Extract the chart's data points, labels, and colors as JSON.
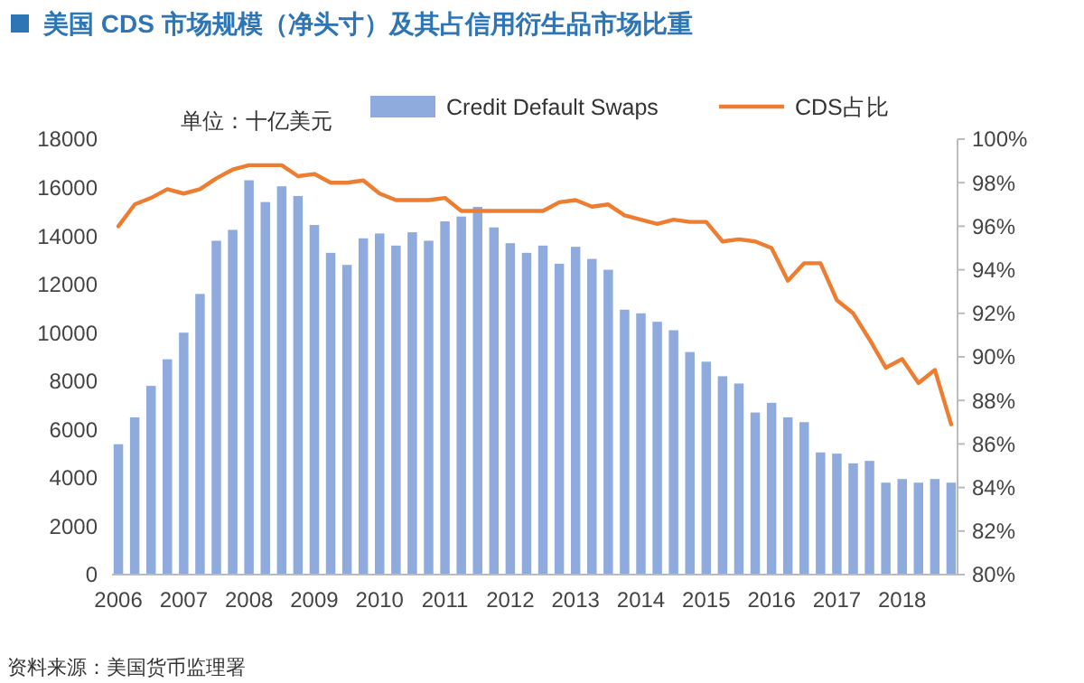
{
  "chart_data": {
    "type": "bar",
    "title": "美国 CDS 市场规模（净头寸）及其占信用衍生品市场比重",
    "annotations": [
      "单位：十亿美元",
      "资料来源：美国货币监理署"
    ],
    "categories": [
      "2006",
      null,
      null,
      null,
      "2007",
      null,
      null,
      null,
      "2008",
      null,
      null,
      null,
      "2009",
      null,
      null,
      null,
      "2010",
      null,
      null,
      null,
      "2011",
      null,
      null,
      null,
      "2012",
      null,
      null,
      null,
      "2013",
      null,
      null,
      null,
      "2014",
      null,
      null,
      null,
      "2015",
      null,
      null,
      null,
      "2016",
      null,
      null,
      null,
      "2017",
      null,
      null,
      null,
      "2018",
      null,
      null,
      null
    ],
    "series": [
      {
        "name": "Credit Default Swaps",
        "color": "#8faadc",
        "values": [
          5390,
          6500,
          7800,
          8900,
          10000,
          11600,
          13800,
          14250,
          16300,
          15400,
          16050,
          15650,
          14450,
          13300,
          12800,
          13900,
          14100,
          13600,
          14150,
          13800,
          14600,
          14800,
          15200,
          14350,
          13700,
          13300,
          13600,
          12850,
          13550,
          13050,
          12600,
          10950,
          10800,
          10450,
          10100,
          9200,
          8800,
          8200,
          7900,
          6700,
          7100,
          6500,
          6300,
          5050,
          5000,
          4600,
          4700,
          3800,
          3950,
          3800,
          3950,
          3800
        ]
      },
      {
        "name": "CDS占比",
        "type": "line",
        "axis": "y2",
        "color": "#ed7d31",
        "values": [
          96.0,
          97.0,
          97.3,
          97.7,
          97.5,
          97.7,
          98.2,
          98.6,
          98.8,
          98.8,
          98.8,
          98.3,
          98.4,
          98.0,
          98.0,
          98.1,
          97.5,
          97.2,
          97.2,
          97.2,
          97.3,
          96.7,
          96.7,
          96.7,
          96.7,
          96.7,
          96.7,
          97.1,
          97.2,
          96.9,
          97.0,
          96.5,
          96.3,
          96.1,
          96.3,
          96.2,
          96.2,
          95.3,
          95.4,
          95.3,
          95.0,
          93.5,
          94.3,
          94.3,
          92.6,
          92.0,
          90.8,
          89.5,
          89.9,
          88.8,
          89.4,
          86.9
        ]
      }
    ],
    "ylim": [
      0,
      18000
    ],
    "yticks": [
      0,
      2000,
      4000,
      6000,
      8000,
      10000,
      12000,
      14000,
      16000,
      18000
    ],
    "y2lim": [
      80,
      100
    ],
    "y2ticks": [
      {
        "value": 80,
        "label": "80%"
      },
      {
        "value": 82,
        "label": "82%"
      },
      {
        "value": 84,
        "label": "84%"
      },
      {
        "value": 86,
        "label": "86%"
      },
      {
        "value": 88,
        "label": "88%"
      },
      {
        "value": 90,
        "label": "90%"
      },
      {
        "value": 92,
        "label": "92%"
      },
      {
        "value": 94,
        "label": "94%"
      },
      {
        "value": 96,
        "label": "96%"
      },
      {
        "value": 98,
        "label": "98%"
      },
      {
        "value": 100,
        "label": "100%"
      }
    ],
    "grid": false,
    "legend": "top"
  }
}
